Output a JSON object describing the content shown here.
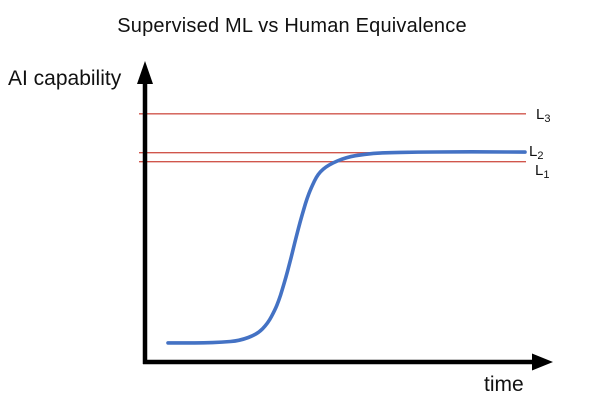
{
  "page": {
    "background": "#ffffff"
  },
  "chart_data": {
    "type": "line",
    "title": "Supervised ML vs Human Equivalence",
    "xlabel": "time",
    "ylabel": "AI capability",
    "xlim": [
      0,
      1
    ],
    "ylim": [
      0,
      1
    ],
    "grid": false,
    "legend": "none",
    "axes_style": "arrows-no-ticks",
    "series": [
      {
        "name": "AI capability (sigmoid growth curve)",
        "color": "#4472C4",
        "x": [
          0,
          0.05,
          0.1,
          0.15,
          0.2,
          0.25,
          0.28,
          0.3,
          0.31,
          0.32,
          0.33,
          0.34,
          0.35,
          0.36,
          0.37,
          0.38,
          0.39,
          0.4,
          0.42,
          0.45,
          0.5,
          0.55,
          0.6,
          0.7,
          0.8,
          0.9,
          1.0
        ],
        "y": [
          0.064,
          0.064,
          0.064,
          0.066,
          0.071,
          0.093,
          0.13,
          0.175,
          0.205,
          0.241,
          0.282,
          0.327,
          0.374,
          0.422,
          0.468,
          0.51,
          0.548,
          0.58,
          0.63,
          0.66,
          0.685,
          0.695,
          0.7,
          0.702,
          0.703,
          0.703,
          0.702
        ]
      }
    ],
    "ref_lines": [
      {
        "label": "L3",
        "label_base": "L",
        "label_sub": "3",
        "level": 0.83,
        "color": "#D0564C"
      },
      {
        "label": "L2",
        "label_base": "L",
        "label_sub": "2",
        "level": 0.7,
        "color": "#D0564C"
      },
      {
        "label": "L1",
        "label_base": "L",
        "label_sub": "1",
        "level": 0.67,
        "color": "#D0564C"
      }
    ]
  },
  "colors": {
    "curve": "#4472C4",
    "ref_line": "#D0564C",
    "axis": "#000000",
    "text": "#111111"
  }
}
